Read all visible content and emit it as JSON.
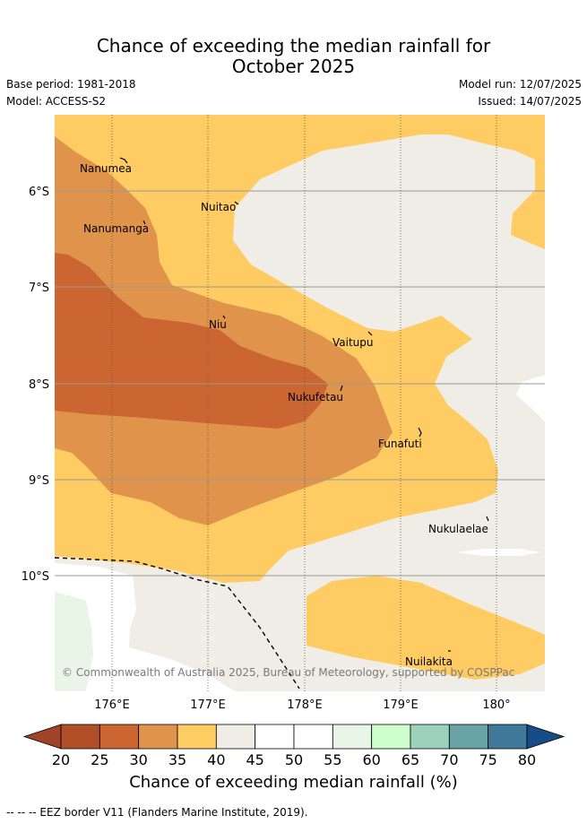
{
  "title_line1": "Chance of exceeding the median rainfall for",
  "title_line2": "October 2025",
  "base_period": "Base period: 1981-2018",
  "model": "Model: ACCESS-S2",
  "model_run": "Model run: 12/07/2025",
  "issued": "Issued: 14/07/2025",
  "copyright": "© Commonwealth of Australia 2025, Bureau of Meteorology, supported by COSPPac",
  "lat_labels": [
    "6°S",
    "7°S",
    "8°S",
    "9°S",
    "10°S"
  ],
  "lon_labels": [
    "176°E",
    "177°E",
    "178°E",
    "179°E",
    "180°"
  ],
  "places": [
    "Nanumea",
    "Nuitao",
    "Nanumanga",
    "Niu",
    "Vaitupu",
    "Nukufetau",
    "Funafuti",
    "Nukulaelae",
    "Nuilakita"
  ],
  "colorbar": {
    "ticks": [
      "20",
      "25",
      "30",
      "35",
      "40",
      "45",
      "50",
      "55",
      "60",
      "65",
      "70",
      "75",
      "80"
    ],
    "colors": [
      "#b04f27",
      "#cb6632",
      "#e0934a",
      "#fecc63",
      "#f0ece6",
      "#ffffff",
      "#ffffff",
      "#e9f5e7",
      "#ccffcc",
      "#9cd1bb",
      "#6aa3a5",
      "#3f7898"
    ],
    "under_color": "#a14328",
    "over_color": "#174d86",
    "label": "Chance of exceeding median rainfall (%)"
  },
  "footnote": "-- -- -- EEZ border V11 (Flanders Marine Institute, 2019)."
}
